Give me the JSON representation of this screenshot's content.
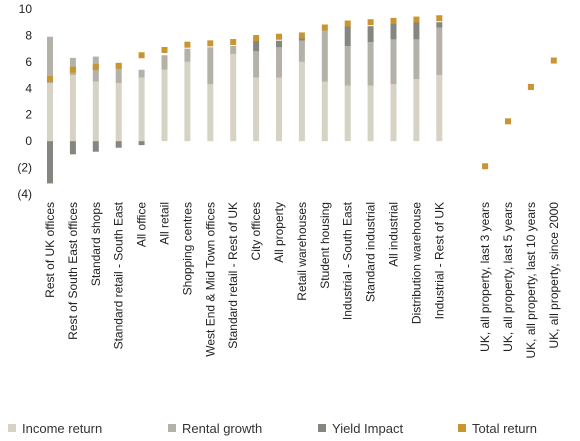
{
  "chart_data": {
    "type": "bar",
    "ylim": [
      -4,
      10
    ],
    "yticks": [
      {
        "value": 10,
        "label": "10"
      },
      {
        "value": 8,
        "label": "8"
      },
      {
        "value": 6,
        "label": "6"
      },
      {
        "value": 4,
        "label": "4"
      },
      {
        "value": 2,
        "label": "2"
      },
      {
        "value": 0,
        "label": "0"
      },
      {
        "value": -2,
        "label": "(2)"
      },
      {
        "value": -4,
        "label": "(4)"
      }
    ],
    "grid": false,
    "legend_position": "bottom",
    "categories": [
      "Rest of UK offices",
      "Rest of South East offices",
      "Standard shops",
      "Standard retail - South East",
      "All office",
      "All retail",
      "Shopping centres",
      "West End & Mid Town offices",
      "Standard retail - Rest of UK",
      "City offices",
      "All property",
      "Retail warehouses",
      "Student housing",
      "Industrial - South East",
      "Standard industrial",
      "All industrial",
      "Distribution warehouse",
      "Industrial - Rest of UK",
      "",
      "UK, all property, last 3 years",
      "UK, all property, last 5 years",
      "UK, all property, last 10 years",
      "UK, all property, since 2000"
    ],
    "series": [
      {
        "name": "Income return",
        "color": "#d6d3c4",
        "values": [
          4.4,
          5.0,
          4.5,
          4.4,
          4.8,
          5.4,
          6.0,
          4.3,
          6.6,
          4.8,
          4.8,
          6.0,
          4.5,
          4.2,
          4.2,
          4.3,
          4.7,
          5.0,
          null,
          null,
          null,
          null,
          null
        ]
      },
      {
        "name": "Rental growth",
        "color": "#b4b2a8",
        "values": [
          3.5,
          1.3,
          1.9,
          1.5,
          0.6,
          1.1,
          1.0,
          2.8,
          0.6,
          2.0,
          2.3,
          1.6,
          3.9,
          3.0,
          3.3,
          3.4,
          3.0,
          3.6,
          null,
          null,
          null,
          null,
          null
        ]
      },
      {
        "name": "Yield Impact",
        "color": "#868681",
        "values": [
          -3.2,
          -1.0,
          -0.8,
          -0.5,
          -0.3,
          0.0,
          0.0,
          0.0,
          0.0,
          0.8,
          0.5,
          0.3,
          0.0,
          1.5,
          1.2,
          1.2,
          1.3,
          0.4,
          null,
          null,
          null,
          null,
          null
        ]
      },
      {
        "name": "Total return",
        "color": "#c9952e",
        "values": [
          4.7,
          5.4,
          5.6,
          5.7,
          6.5,
          6.9,
          7.3,
          7.4,
          7.5,
          7.8,
          7.9,
          8.0,
          8.6,
          8.9,
          9.0,
          9.1,
          9.2,
          9.3,
          null,
          -1.9,
          1.5,
          4.1,
          6.1
        ]
      }
    ]
  }
}
